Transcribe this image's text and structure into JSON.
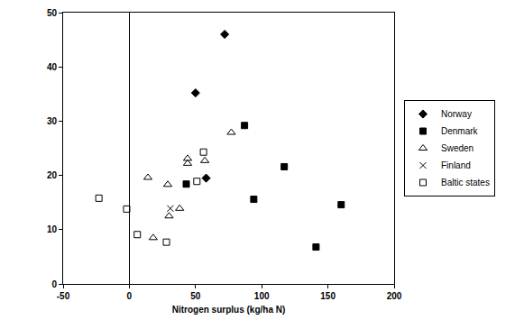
{
  "chart_data": {
    "type": "scatter",
    "x_label": "Nitrogen surplus (kg/ha N)",
    "xlim": [
      -50,
      200
    ],
    "xticks": [
      -50,
      0,
      50,
      100,
      150,
      200
    ],
    "ylim": [
      0,
      50
    ],
    "yticks": [
      0,
      10,
      20,
      30,
      40,
      50
    ],
    "grid": false,
    "legend": "right",
    "series": [
      {
        "name": "Norway",
        "color": "#000000",
        "marker": "diamond",
        "x": [
          72,
          50,
          58
        ],
        "values": [
          46,
          35.2,
          19.5
        ]
      },
      {
        "name": "Denmark",
        "color": "#000000",
        "marker": "square",
        "x": [
          43,
          87,
          117,
          94,
          160,
          141
        ],
        "values": [
          18.4,
          29.2,
          21.6,
          15.6,
          14.6,
          6.8
        ]
      },
      {
        "name": "Sweden",
        "color": "#000000",
        "marker": "triangle-open",
        "x": [
          14,
          29,
          44,
          44,
          57,
          77,
          30,
          38,
          18
        ],
        "values": [
          19.6,
          18.3,
          23.1,
          22.2,
          22.7,
          27.9,
          12.5,
          13.9,
          8.5
        ]
      },
      {
        "name": "Finland",
        "color": "#000000",
        "marker": "x",
        "x": [
          31
        ],
        "values": [
          13.9
        ]
      },
      {
        "name": "Baltic states",
        "color": "#000000",
        "marker": "square-open",
        "x": [
          -23,
          -2,
          6,
          28,
          51,
          56
        ],
        "values": [
          15.8,
          13.8,
          9.1,
          7.7,
          18.9,
          24.3
        ]
      }
    ]
  }
}
